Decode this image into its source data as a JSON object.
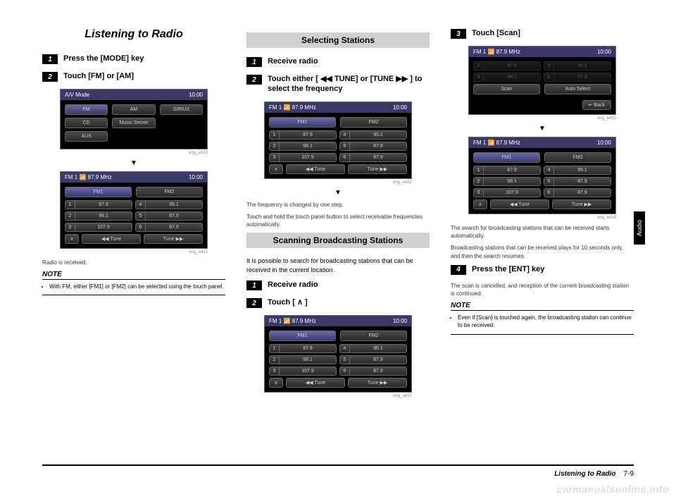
{
  "page": {
    "title": "Listening to Radio",
    "footer_title": "Listening to Radio",
    "footer_page": "7-9",
    "side_tab": "Audio",
    "watermark": "carmanualsonline.info"
  },
  "col1": {
    "step1": "Press the [MODE] key",
    "step2": "Touch [FM] or [AM]",
    "radio_received": "Radio is received.",
    "note_label": "NOTE",
    "note_text": "With FM, either [FM1] or [FM2] can be selected using the touch panel."
  },
  "col2": {
    "heading1": "Selecting Stations",
    "step1": "Receive radio",
    "step2": "Touch either [ ◀◀ TUNE] or [TUNE ▶▶ ] to select the frequency",
    "freq_changed": "The frequency is changed by one step.",
    "freq_auto": "Touch and hold the touch panel button to select receivable frequencies automatically.",
    "heading2": "Scanning Broadcasting Stations",
    "scan_intro": "It is possible to search for broadcasting stations that can be received in the current location.",
    "scan_step1": "Receive radio",
    "scan_step2": "Touch [ ∧ ]"
  },
  "col3": {
    "step3": "Touch [Scan]",
    "search_text": "The search for broadcasting stations that can be received starts automatically.",
    "play_text": "Broadcasting stations that can be received plays for 10 seconds only, and then the search resumes.",
    "step4": "Press the [ENT] key",
    "cancel_text": "The scan is cancelled, and reception of the current broadcasting station is continued.",
    "note_label": "NOTE",
    "note_text": "Even if [Scan] is touched again, the broadcasting station can continue to be received."
  },
  "screens": {
    "avmode": {
      "title": "A/V Mode",
      "time": "10:00",
      "btns": [
        "FM",
        "AM",
        "SIRIUS",
        "CD",
        "Music Server",
        "AUX"
      ],
      "cap": "eng_a310"
    },
    "fm": {
      "title": "FM 1   📶 87.9  MHz",
      "time": "10:00",
      "tabs": [
        "FM1",
        "FM2"
      ],
      "presets": [
        [
          "1",
          "87.9"
        ],
        [
          "4",
          "95.1"
        ],
        [
          "2",
          "98.1"
        ],
        [
          "5",
          "87.9"
        ],
        [
          "3",
          "107.9"
        ],
        [
          "6",
          "87.9"
        ]
      ],
      "tune_l": "◀◀",
      "tune": "Tune",
      "tune_r": "▶▶",
      "cap": "eng_a431"
    },
    "scan": {
      "btns": [
        "Scan",
        "Auto Select"
      ],
      "back": "↩ Back",
      "cap": "eng_a432"
    },
    "fm2": {
      "cap": "eng_a433"
    }
  }
}
